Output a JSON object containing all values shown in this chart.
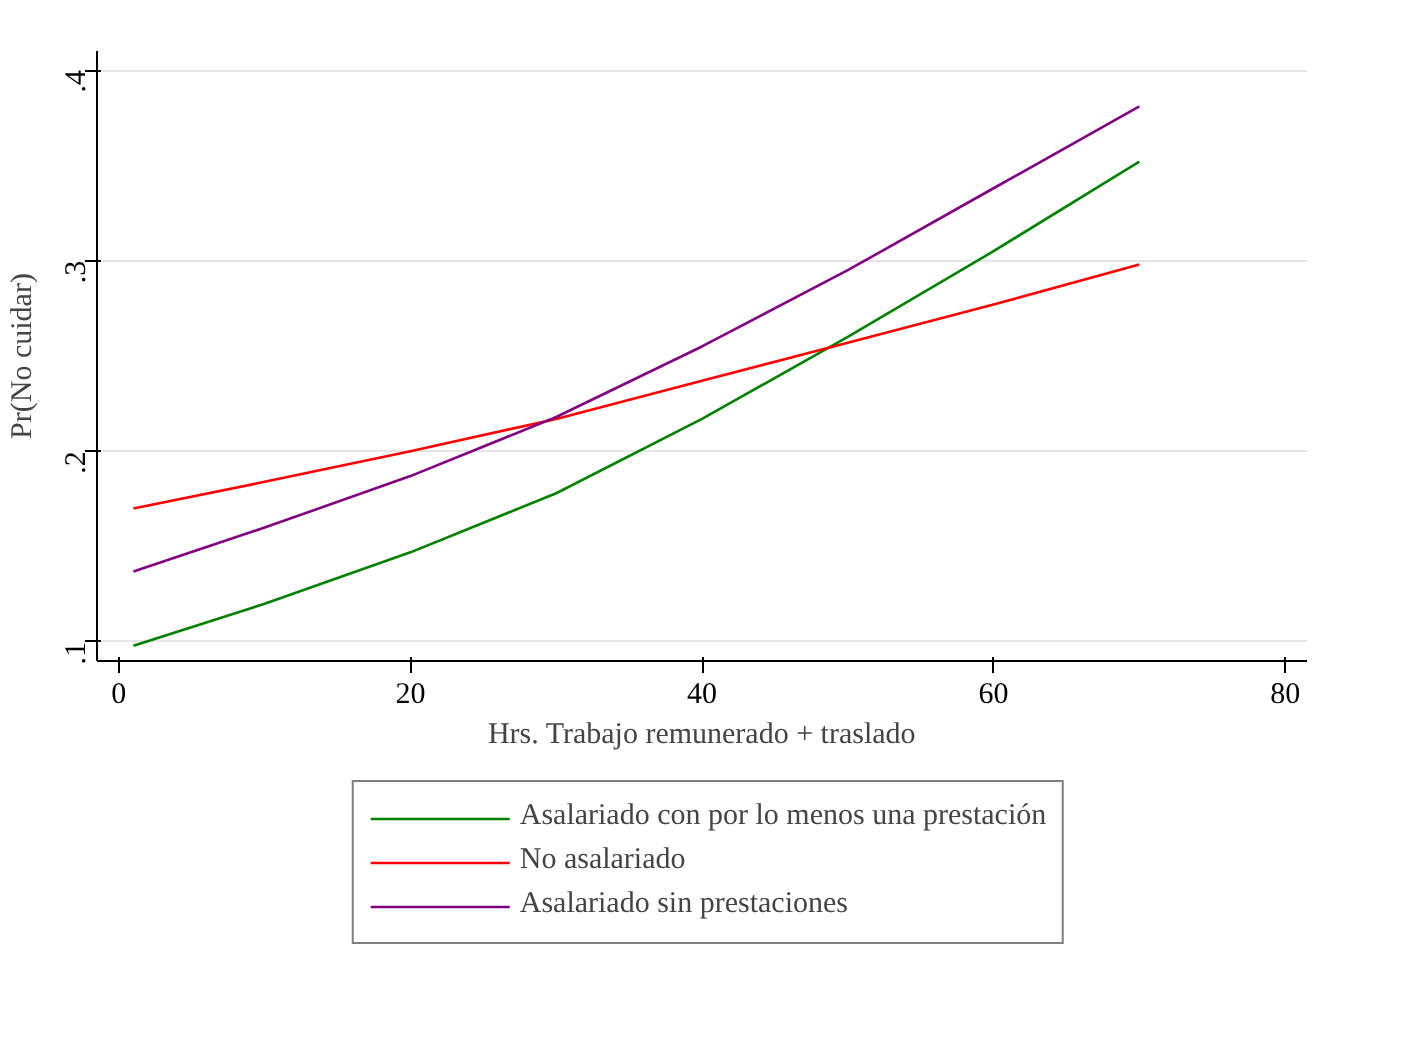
{
  "chart_data": {
    "type": "line",
    "xlabel": "Hrs. Trabajo remunerado + traslado",
    "ylabel": "Pr(No cuidar)",
    "x": [
      1,
      10,
      20,
      30,
      40,
      50,
      60,
      70
    ],
    "series": [
      {
        "name": "Asalariado con por lo menos una prestación",
        "color": "#008000",
        "values": [
          0.098,
          0.12,
          0.147,
          0.178,
          0.217,
          0.26,
          0.305,
          0.352
        ]
      },
      {
        "name": "No asalariado",
        "color": "#ff0000",
        "values": [
          0.17,
          0.184,
          0.2,
          0.217,
          0.237,
          0.257,
          0.277,
          0.298
        ]
      },
      {
        "name": "Asalariado sin prestaciones",
        "color": "#800080",
        "values": [
          0.137,
          0.16,
          0.187,
          0.218,
          0.255,
          0.295,
          0.338,
          0.381
        ]
      }
    ],
    "xlim": [
      -1.5,
      81.5
    ],
    "ylim": [
      0.09,
      0.41
    ],
    "xticks": [
      0,
      20,
      40,
      60,
      80
    ],
    "yticks": [
      {
        "value": 0.1,
        "label": ".1"
      },
      {
        "value": 0.2,
        "label": ".2"
      },
      {
        "value": 0.3,
        "label": ".3"
      },
      {
        "value": 0.4,
        "label": ".4"
      }
    ],
    "grid": "y",
    "legend": "bottom"
  }
}
